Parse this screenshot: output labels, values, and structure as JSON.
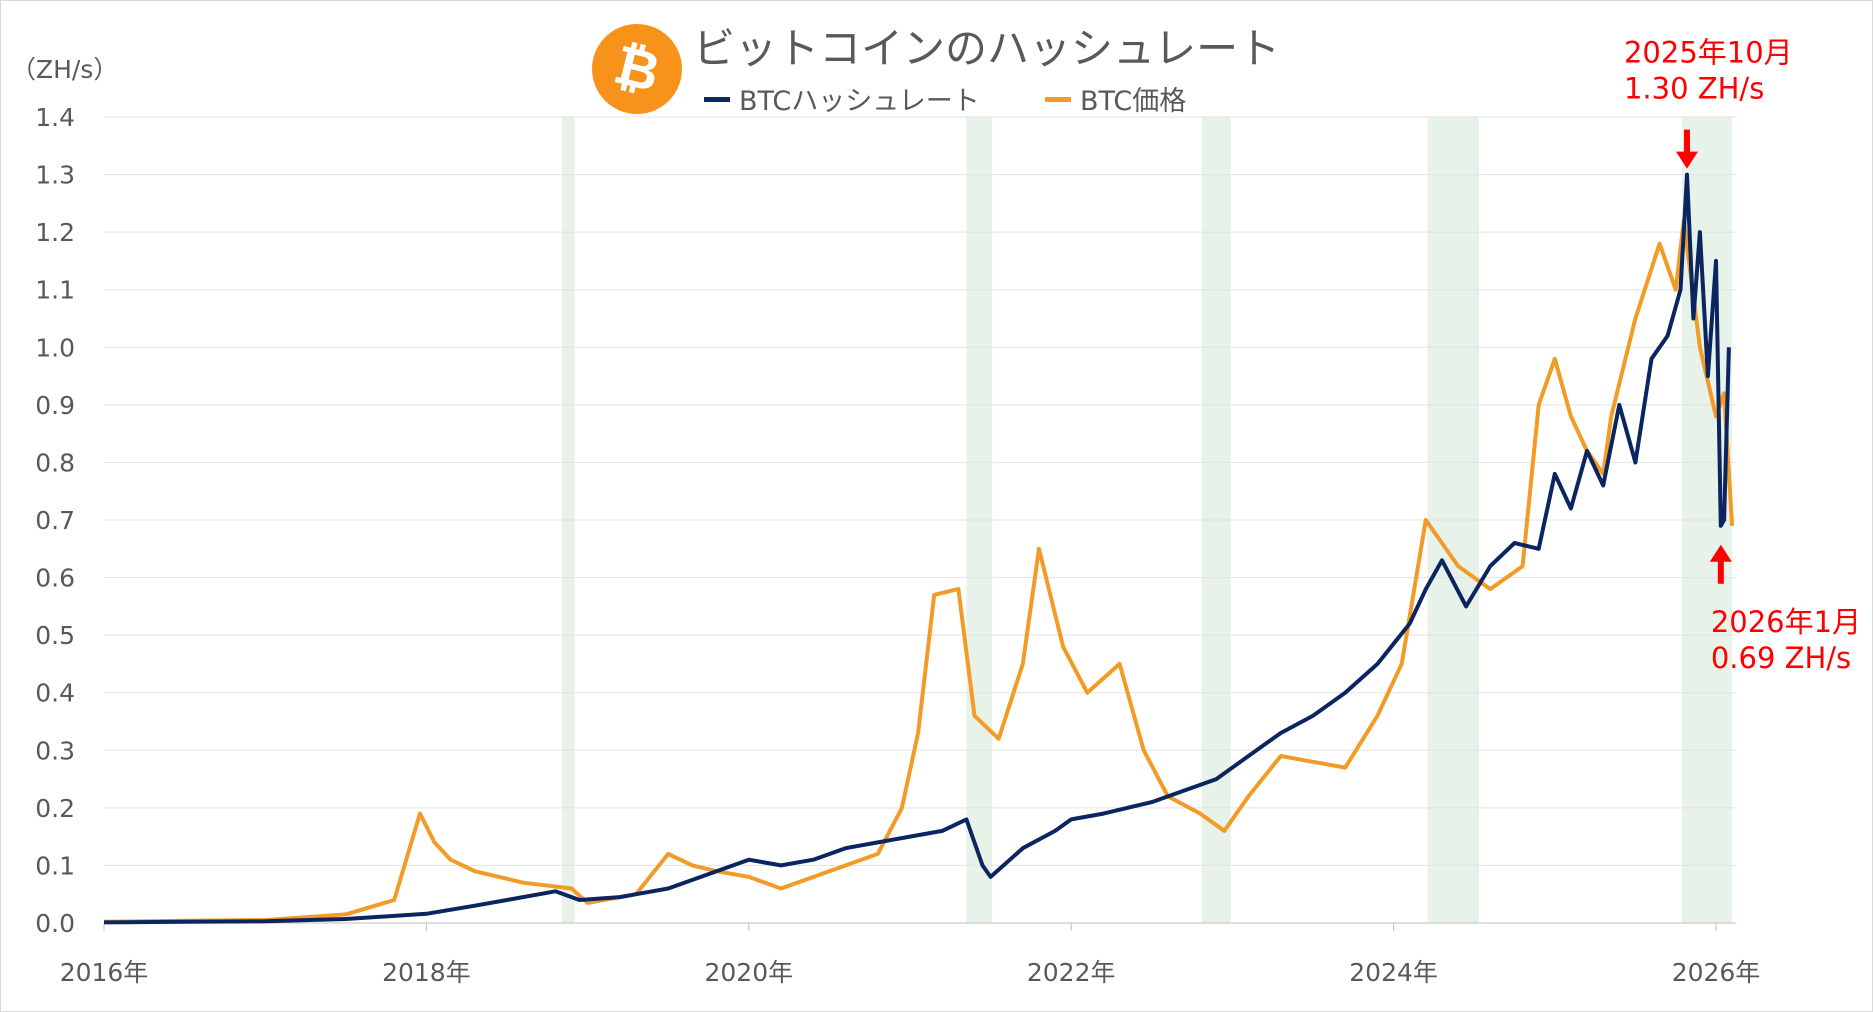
{
  "chart_data": {
    "type": "line",
    "title": "ビットコインのハッシュレート",
    "ylabel": "（ZH/s）",
    "xlabel": "",
    "ylim": [
      0,
      1.4
    ],
    "xlim": [
      2016,
      2026
    ],
    "yticks": [
      "0.0",
      "0.1",
      "0.2",
      "0.3",
      "0.4",
      "0.5",
      "0.6",
      "0.7",
      "0.8",
      "0.9",
      "1.0",
      "1.1",
      "1.2",
      "1.3",
      "1.4"
    ],
    "xticks": [
      {
        "v": 2016,
        "label": "2016年"
      },
      {
        "v": 2018,
        "label": "2018年"
      },
      {
        "v": 2020,
        "label": "2020年"
      },
      {
        "v": 2022,
        "label": "2022年"
      },
      {
        "v": 2024,
        "label": "2024年"
      },
      {
        "v": 2026,
        "label": "2026年"
      }
    ],
    "grid": true,
    "legend": "top-center",
    "shaded_periods": [
      [
        2018.84,
        2018.92
      ],
      [
        2021.35,
        2021.51
      ],
      [
        2022.81,
        2022.99
      ],
      [
        2024.21,
        2024.53
      ],
      [
        2025.79,
        2026.1
      ]
    ],
    "series": [
      {
        "name": "BTCハッシュレート",
        "color": "#0b2561",
        "x": [
          2016.0,
          2016.5,
          2017.0,
          2017.5,
          2018.0,
          2018.3,
          2018.5,
          2018.8,
          2018.95,
          2019.2,
          2019.5,
          2019.8,
          2020.0,
          2020.2,
          2020.4,
          2020.6,
          2020.8,
          2021.0,
          2021.2,
          2021.35,
          2021.45,
          2021.5,
          2021.7,
          2021.9,
          2022.0,
          2022.2,
          2022.5,
          2022.7,
          2022.9,
          2023.1,
          2023.3,
          2023.5,
          2023.7,
          2023.9,
          2024.1,
          2024.2,
          2024.3,
          2024.45,
          2024.6,
          2024.75,
          2024.9,
          2025.0,
          2025.1,
          2025.2,
          2025.3,
          2025.4,
          2025.5,
          2025.6,
          2025.7,
          2025.78,
          2025.82,
          2025.86,
          2025.9,
          2025.95,
          2026.0,
          2026.03,
          2026.05,
          2026.08
        ],
        "values": [
          0.001,
          0.002,
          0.003,
          0.007,
          0.016,
          0.03,
          0.04,
          0.055,
          0.04,
          0.045,
          0.06,
          0.09,
          0.11,
          0.1,
          0.11,
          0.13,
          0.14,
          0.15,
          0.16,
          0.18,
          0.1,
          0.08,
          0.13,
          0.16,
          0.18,
          0.19,
          0.21,
          0.23,
          0.25,
          0.29,
          0.33,
          0.36,
          0.4,
          0.45,
          0.52,
          0.58,
          0.63,
          0.55,
          0.62,
          0.66,
          0.65,
          0.78,
          0.72,
          0.82,
          0.76,
          0.9,
          0.8,
          0.98,
          1.02,
          1.1,
          1.3,
          1.05,
          1.2,
          0.95,
          1.15,
          0.69,
          0.7,
          1.0
        ]
      },
      {
        "name": "BTC価格",
        "color": "#f29b26",
        "x": [
          2016.0,
          2016.5,
          2017.0,
          2017.5,
          2017.8,
          2017.96,
          2018.05,
          2018.15,
          2018.3,
          2018.6,
          2018.9,
          2019.0,
          2019.3,
          2019.5,
          2019.65,
          2019.8,
          2020.0,
          2020.2,
          2020.5,
          2020.8,
          2020.95,
          2021.05,
          2021.15,
          2021.3,
          2021.4,
          2021.55,
          2021.7,
          2021.8,
          2021.95,
          2022.1,
          2022.3,
          2022.45,
          2022.6,
          2022.8,
          2022.95,
          2023.1,
          2023.3,
          2023.5,
          2023.7,
          2023.9,
          2024.05,
          2024.2,
          2024.4,
          2024.6,
          2024.8,
          2024.9,
          2025.0,
          2025.1,
          2025.2,
          2025.3,
          2025.35,
          2025.5,
          2025.65,
          2025.75,
          2025.8,
          2025.9,
          2026.0,
          2026.05,
          2026.1
        ],
        "values": [
          0.002,
          0.004,
          0.005,
          0.015,
          0.04,
          0.19,
          0.14,
          0.11,
          0.09,
          0.07,
          0.06,
          0.035,
          0.05,
          0.12,
          0.1,
          0.09,
          0.08,
          0.06,
          0.09,
          0.12,
          0.2,
          0.33,
          0.57,
          0.58,
          0.36,
          0.32,
          0.45,
          0.65,
          0.48,
          0.4,
          0.45,
          0.3,
          0.22,
          0.19,
          0.16,
          0.22,
          0.29,
          0.28,
          0.27,
          0.36,
          0.45,
          0.7,
          0.62,
          0.58,
          0.62,
          0.9,
          0.98,
          0.88,
          0.82,
          0.78,
          0.88,
          1.05,
          1.18,
          1.1,
          1.22,
          1.0,
          0.88,
          0.92,
          0.69
        ]
      }
    ],
    "annotations": [
      {
        "line1": "2025年10月",
        "line2": "1.30 ZH/s",
        "x": 2025.82,
        "y": 1.3,
        "arrow": "down",
        "color": "#ff0000"
      },
      {
        "line1": "2026年1月",
        "line2": "0.69 ZH/s",
        "x": 2026.03,
        "y": 0.69,
        "arrow": "up",
        "color": "#ff0000"
      }
    ],
    "logo": {
      "icon": "bitcoin-logo-icon",
      "color": "#f7931a",
      "glyph": "₿"
    }
  }
}
